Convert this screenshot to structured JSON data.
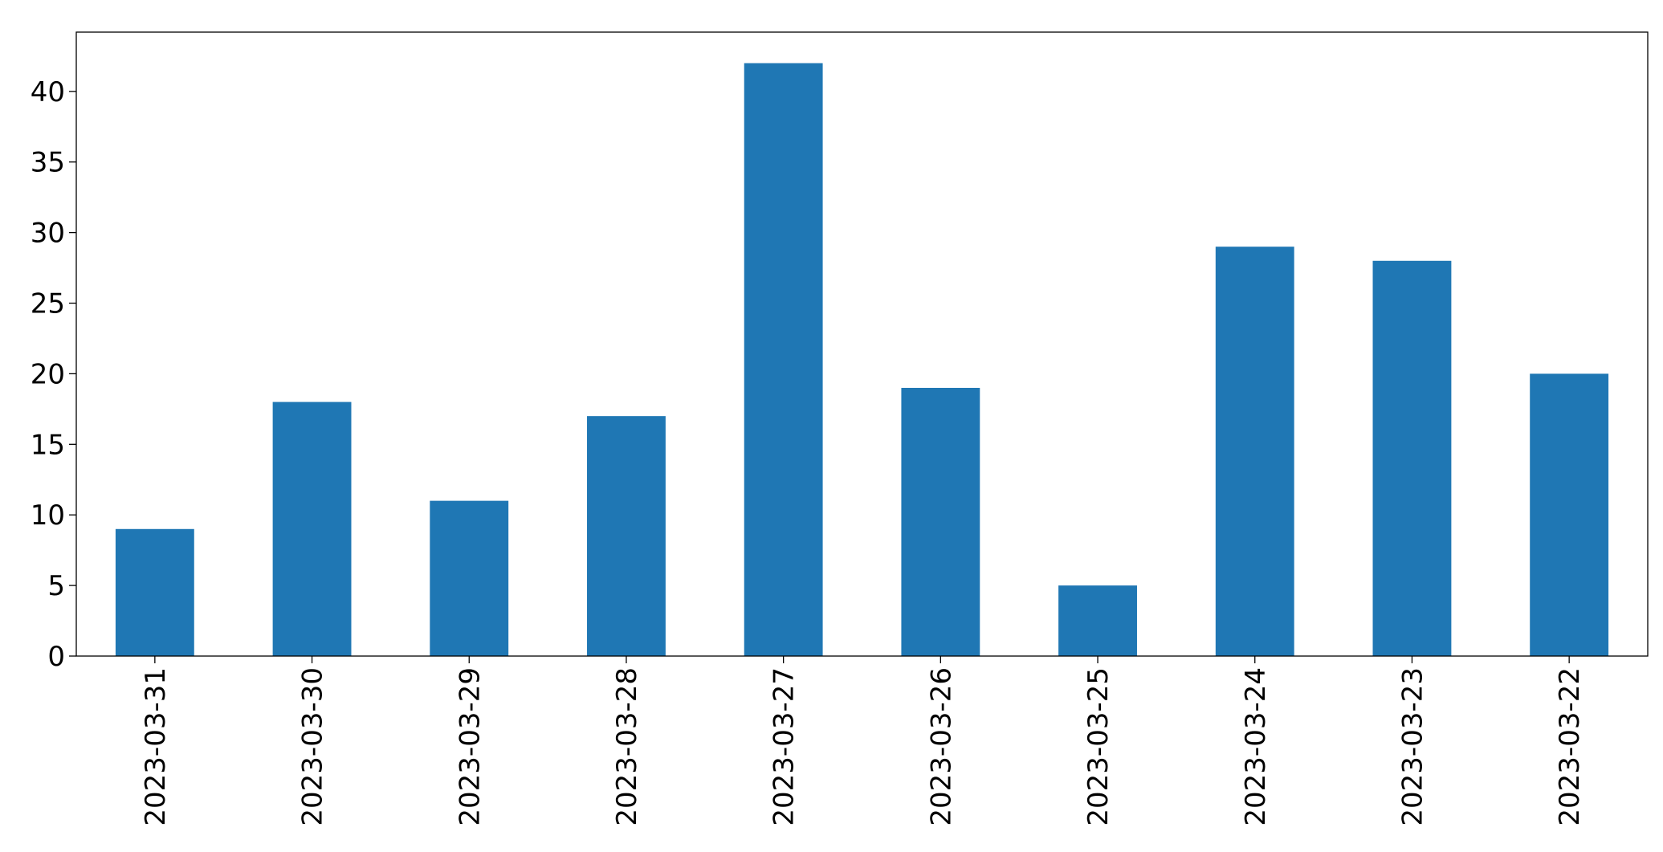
{
  "chart_data": {
    "type": "bar",
    "categories": [
      "2023-03-31",
      "2023-03-30",
      "2023-03-29",
      "2023-03-28",
      "2023-03-27",
      "2023-03-26",
      "2023-03-25",
      "2023-03-24",
      "2023-03-23",
      "2023-03-22"
    ],
    "values": [
      9,
      18,
      11,
      17,
      42,
      19,
      5,
      29,
      28,
      20
    ],
    "color": "#1f77b4",
    "ylim": [
      0,
      44.2
    ],
    "yticks": [
      0,
      5,
      10,
      15,
      20,
      25,
      30,
      35,
      40
    ],
    "grid": false
  }
}
